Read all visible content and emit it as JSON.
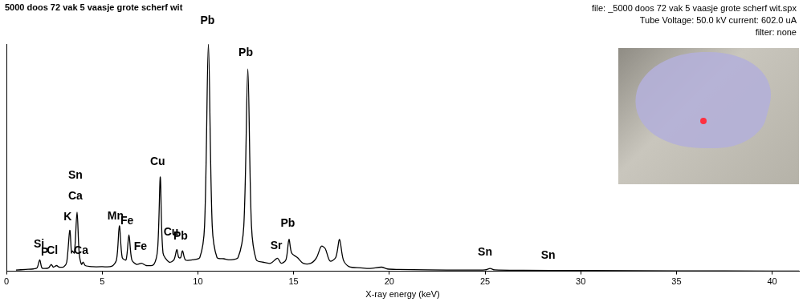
{
  "chart_data": {
    "type": "line",
    "title": "5000 doos 72 vak 5 vaasje grote scherf wit",
    "subtitle": [
      "file: _5000 doos 72 vak 5 vaasje grote scherf wit.spx",
      "Tube Voltage: 50.0 kV current: 602.0 uA",
      "filter: none"
    ],
    "x_label": "X-ray energy (keV)",
    "color": "#000000",
    "grid": false,
    "tick_labels": "x",
    "xlim": [
      0,
      41.4
    ],
    "xticks": [
      0,
      5,
      10,
      15,
      20,
      25,
      30,
      35,
      40
    ],
    "ylim": [
      0,
      100
    ],
    "x": [
      0.5,
      1.0,
      1.4,
      1.6,
      1.74,
      1.85,
      2.0,
      2.2,
      2.34,
      2.45,
      2.62,
      2.75,
      3.0,
      3.15,
      3.31,
      3.4,
      3.44,
      3.55,
      3.69,
      3.8,
      3.92,
      4.01,
      4.12,
      4.5,
      5.0,
      5.5,
      5.75,
      5.9,
      6.05,
      6.25,
      6.4,
      6.55,
      6.8,
      7.06,
      7.3,
      7.7,
      7.9,
      8.04,
      8.18,
      8.5,
      8.75,
      8.9,
      9.0,
      9.1,
      9.2,
      9.35,
      9.7,
      10.1,
      10.35,
      10.55,
      10.75,
      11.0,
      11.35,
      11.7,
      12.1,
      12.4,
      12.61,
      12.8,
      13.05,
      13.4,
      13.8,
      14.16,
      14.35,
      14.6,
      14.76,
      14.9,
      15.2,
      15.5,
      15.9,
      16.2,
      16.45,
      16.65,
      16.9,
      17.2,
      17.4,
      17.6,
      17.9,
      18.5,
      19.0,
      19.6,
      19.9,
      20.5,
      22.0,
      24.0,
      25.0,
      25.27,
      25.5,
      27.0,
      30.0,
      35.0,
      40.0,
      41.4
    ],
    "values": [
      0.5,
      0.8,
      1.0,
      1.5,
      5,
      1.5,
      1.2,
      1.5,
      3,
      1.8,
      2.5,
      1.8,
      2.0,
      4,
      18,
      8,
      9,
      8,
      26,
      8,
      3,
      4,
      2.5,
      2,
      2,
      2.2,
      5,
      20,
      6,
      5,
      16,
      5,
      3,
      3.5,
      2.5,
      3,
      10,
      41.5,
      8,
      4,
      5,
      9.5,
      6,
      6,
      9,
      5,
      5,
      6,
      20,
      100,
      20,
      6,
      5.5,
      5,
      6,
      20,
      89,
      20,
      5,
      4,
      3.5,
      5.7,
      3.5,
      5,
      14,
      8,
      6,
      3.5,
      3.5,
      6,
      11,
      10,
      4.5,
      6,
      14,
      5,
      2,
      1.5,
      1.2,
      1.8,
      1.0,
      0.8,
      0.6,
      0.5,
      0.6,
      1.2,
      0.6,
      0.4,
      0.3,
      0.2,
      0.1,
      0.1
    ],
    "annotations": [
      {
        "text": "Si",
        "x": 1.7,
        "y": 11.7
      },
      {
        "text": "P",
        "x": 2.0,
        "y": 8.3
      },
      {
        "text": "Cl",
        "x": 2.4,
        "y": 9
      },
      {
        "text": "K",
        "x": 3.2,
        "y": 23.8
      },
      {
        "text": "Ca",
        "x": 3.6,
        "y": 33
      },
      {
        "text": "Sn",
        "x": 3.6,
        "y": 42
      },
      {
        "text": "Ca",
        "x": 3.9,
        "y": 9
      },
      {
        "text": "Mn",
        "x": 5.7,
        "y": 24
      },
      {
        "text": "Fe",
        "x": 6.3,
        "y": 22
      },
      {
        "text": "Fe",
        "x": 7.0,
        "y": 10.6
      },
      {
        "text": "Cu",
        "x": 7.9,
        "y": 48
      },
      {
        "text": "Cu",
        "x": 8.6,
        "y": 17
      },
      {
        "text": "Pb",
        "x": 9.1,
        "y": 15.5
      },
      {
        "text": "Pb",
        "x": 10.5,
        "y": 110
      },
      {
        "text": "Pb",
        "x": 12.5,
        "y": 96
      },
      {
        "text": "Sr",
        "x": 14.1,
        "y": 11
      },
      {
        "text": "Pb",
        "x": 14.7,
        "y": 21
      },
      {
        "text": "Sn",
        "x": 25.0,
        "y": 8.3
      },
      {
        "text": "Sn",
        "x": 28.3,
        "y": 6.8
      }
    ]
  }
}
